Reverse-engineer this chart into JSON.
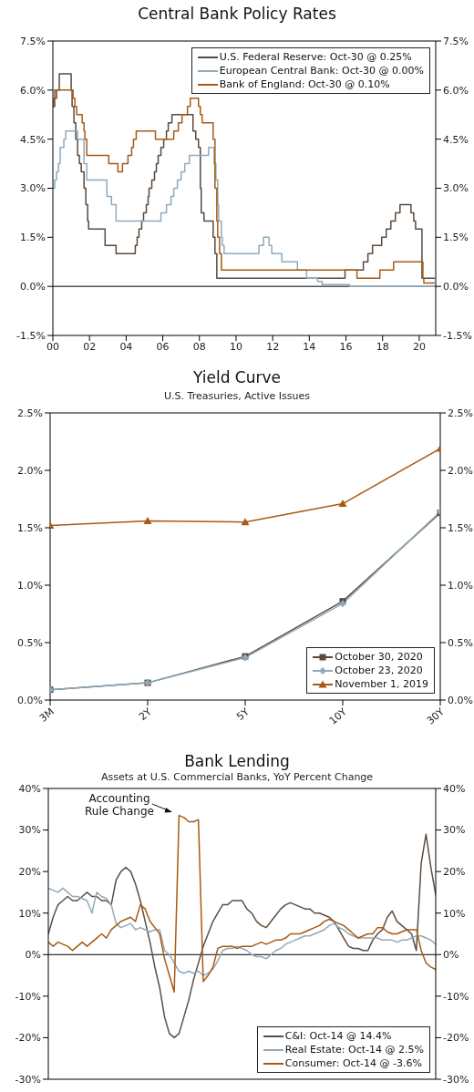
{
  "chart_data": [
    {
      "type": "step",
      "title": "Central Bank Policy Rates",
      "xlim": [
        2000,
        2020.9
      ],
      "xticks": [
        {
          "value": 2000,
          "label": "00"
        },
        {
          "value": 2002,
          "label": "02"
        },
        {
          "value": 2004,
          "label": "04"
        },
        {
          "value": 2006,
          "label": "06"
        },
        {
          "value": 2008,
          "label": "08"
        },
        {
          "value": 2010,
          "label": "10"
        },
        {
          "value": 2012,
          "label": "12"
        },
        {
          "value": 2014,
          "label": "14"
        },
        {
          "value": 2016,
          "label": "16"
        },
        {
          "value": 2018,
          "label": "18"
        },
        {
          "value": 2020,
          "label": "20"
        }
      ],
      "ylim": [
        -1.5,
        7.5
      ],
      "yticks": [
        {
          "value": -1.5,
          "label": "-1.5%"
        },
        {
          "value": 0,
          "label": "0.0%"
        },
        {
          "value": 1.5,
          "label": "1.5%"
        },
        {
          "value": 3,
          "label": "3.0%"
        },
        {
          "value": 4.5,
          "label": "4.5%"
        },
        {
          "value": 6,
          "label": "6.0%"
        },
        {
          "value": 7.5,
          "label": "7.5%"
        }
      ],
      "y2lim": [
        -1.5,
        7.5
      ],
      "y2ticks": [
        {
          "value": -1.5,
          "label": "-1.5%"
        },
        {
          "value": 0,
          "label": "0.0%"
        },
        {
          "value": 1.5,
          "label": "1.5%"
        },
        {
          "value": 3,
          "label": "3.0%"
        },
        {
          "value": 4.5,
          "label": "4.5%"
        },
        {
          "value": 6,
          "label": "6.0%"
        },
        {
          "value": 7.5,
          "label": "7.5%"
        }
      ],
      "legend": "top right",
      "ref_lines": [
        {
          "axis": "y",
          "value": 0
        }
      ],
      "series": [
        {
          "name": "U.S. Federal Reserve: Oct-30 @ 0.25%",
          "color": "#5a4a3e",
          "x": [
            2000,
            2000.1,
            2000.2,
            2000.35,
            2001.0,
            2001.05,
            2001.15,
            2001.25,
            2001.35,
            2001.45,
            2001.55,
            2001.7,
            2001.8,
            2001.9,
            2001.95,
            2002.85,
            2003.45,
            2004.5,
            2004.6,
            2004.7,
            2004.85,
            2004.95,
            2005.1,
            2005.2,
            2005.25,
            2005.4,
            2005.55,
            2005.65,
            2005.75,
            2005.9,
            2006.05,
            2006.2,
            2006.3,
            2006.5,
            2007.65,
            2007.8,
            2007.95,
            2008.05,
            2008.1,
            2008.25,
            2008.75,
            2008.85,
            2008.95,
            2015.95,
            2016.95,
            2017.2,
            2017.45,
            2017.95,
            2018.2,
            2018.45,
            2018.7,
            2018.95,
            2019.55,
            2019.7,
            2019.8,
            2020.15,
            2020.83
          ],
          "values": [
            5.5,
            5.75,
            6.0,
            6.5,
            6.0,
            5.5,
            5.0,
            4.5,
            4.0,
            3.75,
            3.5,
            3.0,
            2.5,
            2.0,
            1.75,
            1.25,
            1.0,
            1.25,
            1.5,
            1.75,
            2.0,
            2.25,
            2.5,
            2.75,
            3.0,
            3.25,
            3.5,
            3.75,
            4.0,
            4.25,
            4.5,
            4.75,
            5.0,
            5.25,
            4.75,
            4.5,
            4.25,
            3.0,
            2.25,
            2.0,
            1.5,
            1.0,
            0.25,
            0.5,
            0.75,
            1.0,
            1.25,
            1.5,
            1.75,
            2.0,
            2.25,
            2.5,
            2.25,
            2.0,
            1.75,
            0.25,
            0.25
          ]
        },
        {
          "name": "European Central Bank: Oct-30 @ 0.00%",
          "color": "#8faabc",
          "x": [
            2000,
            2000.1,
            2000.2,
            2000.3,
            2000.4,
            2000.6,
            2000.7,
            2001.35,
            2001.7,
            2001.85,
            2002.95,
            2003.2,
            2003.45,
            2005.9,
            2006.2,
            2006.45,
            2006.6,
            2006.8,
            2007.0,
            2007.2,
            2007.45,
            2008.5,
            2008.8,
            2008.9,
            2009.0,
            2009.05,
            2009.2,
            2009.25,
            2009.35,
            2011.25,
            2011.5,
            2011.8,
            2011.95,
            2012.5,
            2013.35,
            2013.85,
            2014.45,
            2014.7,
            2016.2,
            2020.83
          ],
          "values": [
            3.0,
            3.25,
            3.5,
            3.75,
            4.25,
            4.5,
            4.75,
            4.5,
            3.75,
            3.25,
            2.75,
            2.5,
            2.0,
            2.25,
            2.5,
            2.75,
            3.0,
            3.25,
            3.5,
            3.75,
            4.0,
            4.25,
            3.75,
            3.25,
            2.5,
            2.0,
            1.5,
            1.25,
            1.0,
            1.25,
            1.5,
            1.25,
            1.0,
            0.75,
            0.5,
            0.25,
            0.15,
            0.05,
            0.0,
            0.0
          ]
        },
        {
          "name": "Bank of England: Oct-30 @ 0.10%",
          "color": "#a85a12",
          "x": [
            2000,
            2000.05,
            2000.1,
            2001.1,
            2001.2,
            2001.3,
            2001.6,
            2001.7,
            2001.75,
            2001.85,
            2003.05,
            2003.55,
            2003.8,
            2004.1,
            2004.3,
            2004.4,
            2004.55,
            2005.6,
            2006.6,
            2006.85,
            2007.05,
            2007.35,
            2007.5,
            2007.95,
            2008.05,
            2008.15,
            2008.75,
            2008.85,
            2008.95,
            2009.0,
            2009.1,
            2009.2,
            2016.6,
            2017.85,
            2018.6,
            2020.2,
            2020.25,
            2020.83
          ],
          "values": [
            5.5,
            5.75,
            6.0,
            5.75,
            5.5,
            5.25,
            5.0,
            4.75,
            4.5,
            4.0,
            3.75,
            3.5,
            3.75,
            4.0,
            4.25,
            4.5,
            4.75,
            4.5,
            4.75,
            5.0,
            5.25,
            5.5,
            5.75,
            5.5,
            5.25,
            5.0,
            4.5,
            3.0,
            2.0,
            1.5,
            1.0,
            0.5,
            0.25,
            0.5,
            0.75,
            0.25,
            0.1,
            0.1
          ]
        }
      ]
    },
    {
      "type": "line",
      "title": "Yield Curve",
      "subtitle": "U.S. Treasuries, Active Issues",
      "categories": [
        "3M",
        "2Y",
        "5Y",
        "10Y",
        "30Y"
      ],
      "ylim": [
        0,
        2.5
      ],
      "yticks": [
        {
          "value": 0,
          "label": "0.0%"
        },
        {
          "value": 0.5,
          "label": "0.5%"
        },
        {
          "value": 1,
          "label": "1.0%"
        },
        {
          "value": 1.5,
          "label": "1.5%"
        },
        {
          "value": 2,
          "label": "2.0%"
        },
        {
          "value": 2.5,
          "label": "2.5%"
        }
      ],
      "y2lim": [
        0,
        2.5
      ],
      "y2ticks": [
        {
          "value": 0,
          "label": "0.0%"
        },
        {
          "value": 0.5,
          "label": "0.5%"
        },
        {
          "value": 1,
          "label": "1.0%"
        },
        {
          "value": 1.5,
          "label": "1.5%"
        },
        {
          "value": 2,
          "label": "2.0%"
        },
        {
          "value": 2.5,
          "label": "2.5%"
        }
      ],
      "legend": "bottom right",
      "series": [
        {
          "name": "October 30, 2020",
          "color": "#5a4a3e",
          "marker": "square",
          "values": [
            0.09,
            0.15,
            0.38,
            0.86,
            1.63
          ]
        },
        {
          "name": "October 23, 2020",
          "color": "#8faabc",
          "marker": "diamond",
          "values": [
            0.09,
            0.15,
            0.37,
            0.84,
            1.64
          ]
        },
        {
          "name": "November 1, 2019",
          "color": "#a85a12",
          "marker": "triangle",
          "values": [
            1.52,
            1.56,
            1.55,
            1.71,
            2.19
          ]
        }
      ]
    },
    {
      "type": "line",
      "title": "Bank Lending",
      "subtitle": "Assets at U.S. Commercial Banks, YoY Percent Change",
      "categories": [
        null,
        null,
        null,
        null,
        null,
        null,
        null,
        null,
        null,
        null,
        null,
        null,
        null,
        null,
        null,
        null,
        null,
        null,
        null,
        null,
        null,
        null,
        null,
        null,
        null,
        null,
        null,
        null,
        null,
        null,
        null,
        null,
        null,
        null,
        null,
        null,
        null,
        null,
        null,
        null,
        null,
        null,
        null,
        null,
        null,
        null,
        null,
        null,
        null,
        null,
        null,
        null,
        null,
        null,
        null,
        null,
        null,
        null,
        null,
        null,
        null,
        null,
        null,
        null,
        null,
        null,
        null,
        null,
        null,
        null,
        null,
        null,
        null,
        null,
        null,
        null,
        null,
        null,
        null,
        null,
        null
      ],
      "ylim": [
        -30,
        40
      ],
      "yticks": [
        {
          "value": -30,
          "label": "-30%"
        },
        {
          "value": -20,
          "label": "-20%"
        },
        {
          "value": -10,
          "label": "-10%"
        },
        {
          "value": 0,
          "label": "0%"
        },
        {
          "value": 10,
          "label": "10%"
        },
        {
          "value": 20,
          "label": "20%"
        },
        {
          "value": 30,
          "label": "30%"
        },
        {
          "value": 40,
          "label": "40%"
        }
      ],
      "y2lim": [
        -30,
        40
      ],
      "y2ticks": [
        {
          "value": -30,
          "label": "-30%"
        },
        {
          "value": -20,
          "label": "-20%"
        },
        {
          "value": -10,
          "label": "-10%"
        },
        {
          "value": 0,
          "label": "0%"
        },
        {
          "value": 10,
          "label": "10%"
        },
        {
          "value": 20,
          "label": "20%"
        },
        {
          "value": 30,
          "label": "30%"
        },
        {
          "value": 40,
          "label": "40%"
        }
      ],
      "tick_labels": "y",
      "legend": "bottom right",
      "ref_lines": [
        {
          "axis": "y",
          "value": 0
        }
      ],
      "annotations": [
        "Accounting Rule Change"
      ],
      "series": [
        {
          "name": "C&I: Oct-14 @ 14.4%",
          "color": "#5e4d40",
          "values": [
            5,
            9,
            12,
            13,
            14,
            13,
            13,
            14,
            15,
            14,
            14,
            13,
            13,
            12,
            18,
            20,
            21,
            20,
            17,
            13,
            8,
            3,
            -3,
            -8,
            -15,
            -19,
            -20,
            -19,
            -15,
            -11,
            -6,
            -2,
            2,
            5,
            8,
            10,
            12,
            12,
            13,
            13,
            13,
            11,
            10,
            8,
            7,
            6.5,
            8,
            9.5,
            11,
            12,
            12.5,
            12,
            11.5,
            11,
            11,
            10,
            10,
            9.5,
            9,
            8,
            6,
            4,
            2,
            1.5,
            1.5,
            1,
            1,
            3.5,
            5,
            6,
            9,
            10.5,
            8,
            7,
            6,
            5,
            1,
            22,
            29,
            21,
            14.4
          ]
        },
        {
          "name": "Real Estate: Oct-14 @ 2.5%",
          "color": "#8faabc",
          "values": [
            16,
            15.5,
            15,
            16,
            15,
            14,
            14,
            13.5,
            13,
            10,
            15,
            14,
            13.5,
            12,
            7.5,
            6.5,
            7,
            7.5,
            6,
            6.5,
            6,
            5.5,
            6,
            6,
            1,
            0,
            -2,
            -4,
            -4.5,
            -4,
            -4.5,
            -4,
            -5,
            -4.5,
            -3.5,
            -1.5,
            1,
            1.5,
            1.5,
            2,
            1.5,
            1,
            0,
            -0.5,
            -0.5,
            -1,
            0,
            1,
            1.5,
            2.5,
            3,
            3.5,
            4,
            4.5,
            4.5,
            5,
            5.5,
            6,
            7,
            7.5,
            6.5,
            6,
            5,
            4.5,
            4,
            4,
            4,
            4,
            4,
            3.5,
            3.5,
            3.5,
            3,
            3.5,
            3.5,
            4,
            4.5,
            4.5,
            4,
            3.5,
            2.5
          ]
        },
        {
          "name": "Consumer: Oct-14 @ -3.6%",
          "color": "#a85a12",
          "values": [
            3,
            2,
            3,
            2.5,
            2,
            1,
            2,
            3,
            2,
            3,
            4,
            5,
            4,
            6,
            7,
            8,
            8.5,
            9,
            8,
            12,
            11,
            8,
            6.5,
            5,
            -1,
            -5,
            -9,
            33.5,
            33,
            32,
            32,
            32.5,
            -6.5,
            -5,
            -3,
            1.5,
            2,
            2,
            2,
            1.5,
            2,
            2,
            2,
            2.5,
            3,
            2.5,
            3,
            3.5,
            3.5,
            4,
            5,
            5,
            5,
            5.5,
            6,
            6.5,
            7,
            8,
            8.5,
            8,
            7.5,
            7,
            6,
            5,
            4,
            4.5,
            5,
            5,
            6.5,
            6.5,
            5.5,
            5,
            5,
            5.5,
            6,
            6,
            6,
            1,
            -2,
            -3,
            -3.6
          ]
        }
      ]
    }
  ]
}
